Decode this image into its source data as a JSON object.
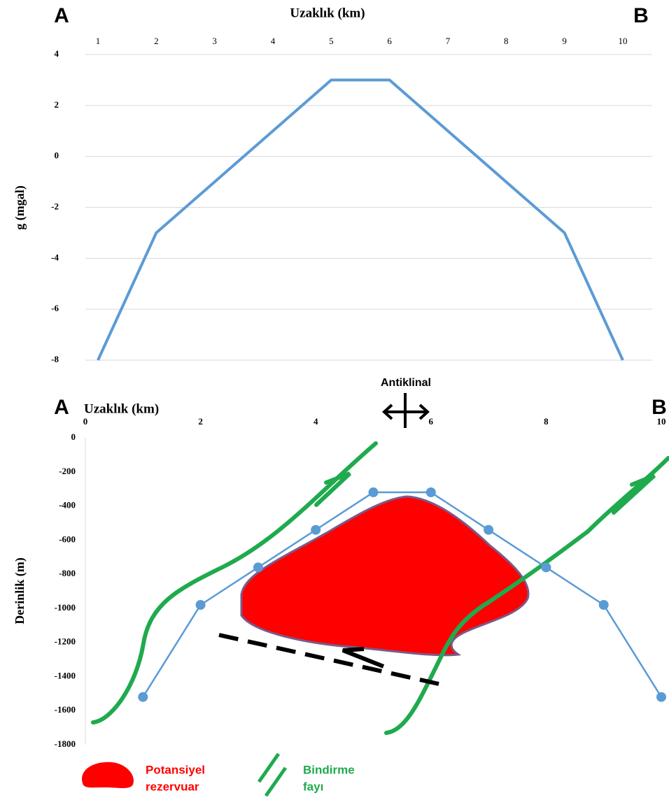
{
  "chart_data": [
    {
      "type": "line",
      "corner_labels": [
        "A",
        "B"
      ],
      "x_label": "Uzaklık (km)",
      "y_label": "g (mgal)",
      "categories": [
        "1",
        "2",
        "3",
        "4",
        "5",
        "6",
        "7",
        "8",
        "9",
        "10"
      ],
      "values": [
        -8,
        -3,
        -1,
        1,
        3,
        3,
        1,
        -1,
        -3,
        -8
      ],
      "color": "#5b9bd5",
      "ylim": [
        -8,
        4
      ],
      "yticks": [
        -8,
        -6,
        -4,
        -2,
        0,
        2,
        4
      ],
      "grid": true
    },
    {
      "type": "line",
      "corner_labels": [
        "A",
        "B"
      ],
      "x_label": "Uzaklık (km)",
      "y_label": "Derinlik (m)",
      "annotations": [
        "Antiklinal"
      ],
      "x": [
        1,
        2,
        3,
        4,
        5,
        6,
        7,
        8,
        9,
        10
      ],
      "values": [
        -1520,
        -980,
        -760,
        -540,
        -320,
        -320,
        -540,
        -760,
        -980,
        -1520
      ],
      "color": "#5b9bd5",
      "xlim": [
        0,
        10
      ],
      "xticks": [
        0,
        2,
        4,
        6,
        8,
        10
      ],
      "ylim": [
        -1800,
        0
      ],
      "yticks": [
        -1800,
        -1600,
        -1400,
        -1200,
        -1000,
        -800,
        -600,
        -400,
        -200,
        0
      ],
      "grid": false,
      "legend": [
        {
          "lines": [
            "Potansiyel",
            "rezervuar"
          ],
          "color": "#ff0000"
        },
        {
          "lines": [
            "Bindirme",
            "fayı"
          ],
          "color": "#1faa4e"
        }
      ]
    }
  ]
}
